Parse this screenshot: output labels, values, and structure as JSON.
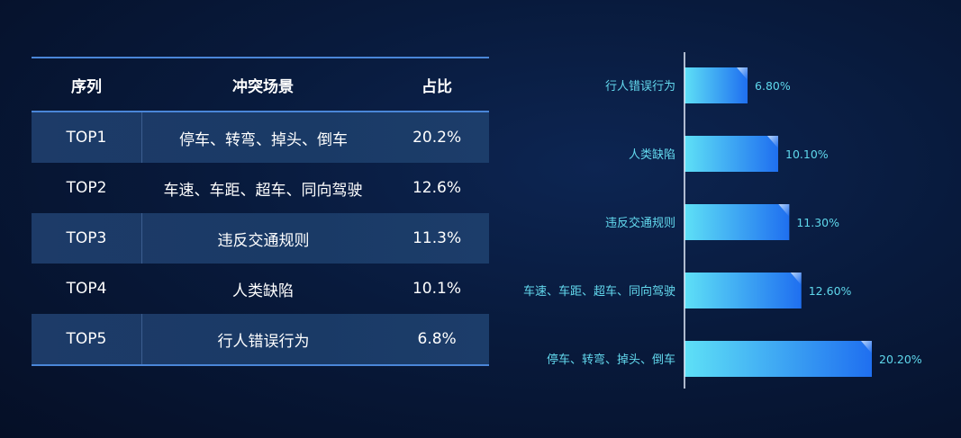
{
  "table": {
    "headers": [
      "序列",
      "冲突场景",
      "占比"
    ],
    "rows": [
      {
        "rank": "TOP1",
        "scene": "停车、转弯、掉头、倒车",
        "ratio": "20.2%"
      },
      {
        "rank": "TOP2",
        "scene": "车速、车距、超车、同向驾驶",
        "ratio": "12.6%"
      },
      {
        "rank": "TOP3",
        "scene": "违反交通规则",
        "ratio": "11.3%"
      },
      {
        "rank": "TOP4",
        "scene": "人类缺陷",
        "ratio": "10.1%"
      },
      {
        "rank": "TOP5",
        "scene": "行人错误行为",
        "ratio": "6.8%"
      }
    ]
  },
  "chart_data": {
    "type": "bar",
    "orientation": "horizontal",
    "categories": [
      "行人错误行为",
      "人类缺陷",
      "违反交通规则",
      "车速、车距、超车、同向驾驶",
      "停车、转弯、掉头、倒车"
    ],
    "values": [
      6.8,
      10.1,
      11.3,
      12.6,
      20.2
    ],
    "value_labels": [
      "6.80%",
      "10.10%",
      "11.30%",
      "12.60%",
      "20.20%"
    ],
    "xlim": [
      0,
      20.2
    ],
    "grid": false,
    "legend": "none",
    "colors": {
      "bar_start": "#5ee0f6",
      "bar_end": "#1f6ff0",
      "label": "#63d9ee",
      "axis": "#e6eefc"
    }
  }
}
